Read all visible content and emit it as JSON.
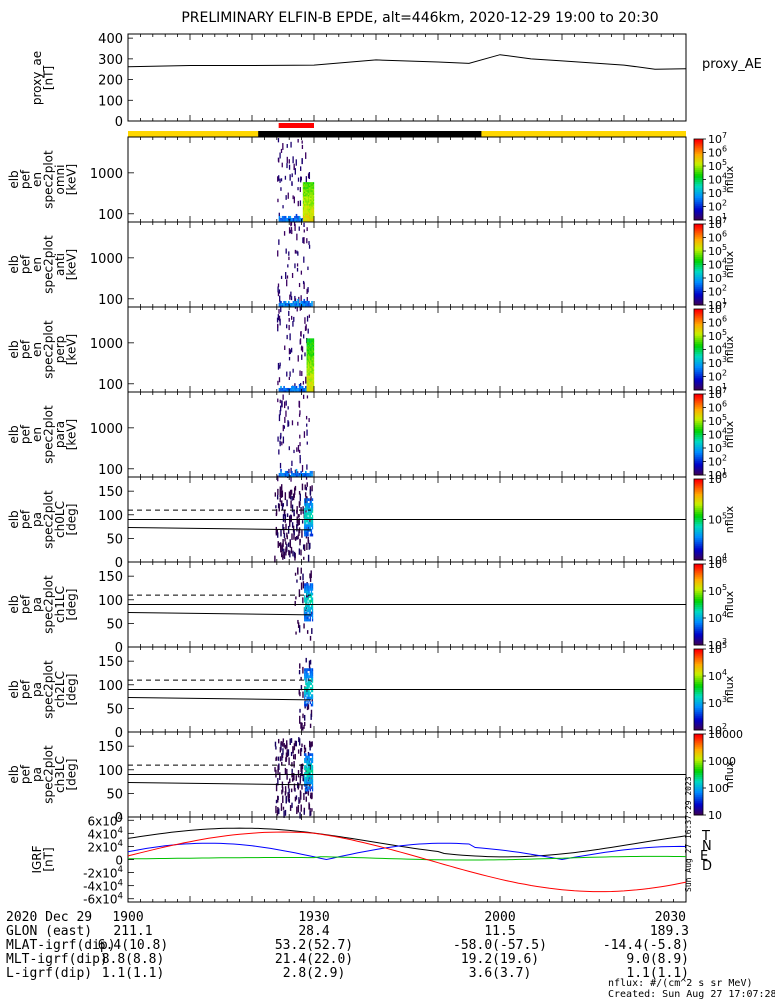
{
  "title": "PRELIMINARY ELFIN-B EPDE, alt=446km, 2020-12-29 19:00 to 20:30",
  "chart_data": [
    {
      "id": "proxy_ae",
      "type": "line",
      "ylabel_lines": [
        "proxy_ae",
        "[nT]"
      ],
      "right_label": "proxy_AE",
      "yticks": [
        "0",
        "100",
        "200",
        "300",
        "400"
      ],
      "ylim": [
        0,
        420
      ],
      "series": [
        {
          "x_min": [
            0,
            10,
            20,
            30,
            40,
            50,
            55,
            60,
            65,
            70,
            75,
            80,
            85,
            90
          ],
          "values": [
            262,
            268,
            268,
            270,
            295,
            285,
            278,
            320,
            300,
            290,
            280,
            270,
            250,
            252
          ]
        }
      ]
    },
    {
      "id": "en_omni",
      "type": "heatmap",
      "ylabel_lines": [
        "elb",
        "pef",
        "en",
        "spec2plot",
        "omni",
        "[keV]"
      ],
      "yticks": [
        "100",
        "1000"
      ],
      "cb_ticks": [
        "10^1",
        "10^2",
        "10^3",
        "10^4",
        "10^5",
        "10^6",
        "10^7"
      ],
      "cb_label": "nflux"
    },
    {
      "id": "en_anti",
      "type": "heatmap",
      "ylabel_lines": [
        "elb",
        "pef",
        "en",
        "spec2plot",
        "anti",
        "[keV]"
      ],
      "yticks": [
        "100",
        "1000"
      ],
      "cb_ticks": [
        "10^1",
        "10^2",
        "10^3",
        "10^4",
        "10^5",
        "10^6",
        "10^7"
      ],
      "cb_label": "nflux"
    },
    {
      "id": "en_perp",
      "type": "heatmap",
      "ylabel_lines": [
        "elb",
        "pef",
        "en",
        "spec2plot",
        "perp",
        "[keV]"
      ],
      "yticks": [
        "100",
        "1000"
      ],
      "cb_ticks": [
        "10^1",
        "10^2",
        "10^3",
        "10^4",
        "10^5",
        "10^6",
        "10^7"
      ],
      "cb_label": "nflux"
    },
    {
      "id": "en_para",
      "type": "heatmap",
      "ylabel_lines": [
        "elb",
        "pef",
        "en",
        "spec2plot",
        "para",
        "[keV]"
      ],
      "yticks": [
        "100",
        "1000"
      ],
      "cb_ticks": [
        "10^1",
        "10^2",
        "10^3",
        "10^4",
        "10^5",
        "10^6",
        "10^7"
      ],
      "cb_label": "nflux"
    },
    {
      "id": "pa_ch0",
      "type": "heatmap",
      "ylabel_lines": [
        "elb",
        "pef",
        "pa",
        "spec2plot",
        "ch0LC",
        "[deg]"
      ],
      "yticks": [
        "0",
        "50",
        "100",
        "150"
      ],
      "cb_ticks": [
        "10^4",
        "10^5",
        "10^6"
      ],
      "cb_label": "nflux"
    },
    {
      "id": "pa_ch1",
      "type": "heatmap",
      "ylabel_lines": [
        "elb",
        "pef",
        "pa",
        "spec2plot",
        "ch1LC",
        "[deg]"
      ],
      "yticks": [
        "0",
        "50",
        "100",
        "150"
      ],
      "cb_ticks": [
        "10^3",
        "10^4",
        "10^5",
        "10^6"
      ],
      "cb_label": "nflux"
    },
    {
      "id": "pa_ch2",
      "type": "heatmap",
      "ylabel_lines": [
        "elb",
        "pef",
        "pa",
        "spec2plot",
        "ch2LC",
        "[deg]"
      ],
      "yticks": [
        "0",
        "50",
        "100",
        "150"
      ],
      "cb_ticks": [
        "10^2",
        "10^3",
        "10^4",
        "10^5"
      ],
      "cb_label": "nflux"
    },
    {
      "id": "pa_ch3",
      "type": "heatmap",
      "ylabel_lines": [
        "elb",
        "pef",
        "pa",
        "spec2plot",
        "ch3LC",
        "[deg]"
      ],
      "yticks": [
        "0",
        "50",
        "100",
        "150"
      ],
      "cb_ticks": [
        "10",
        "100",
        "1000",
        "10000"
      ],
      "cb_label": "nflux"
    },
    {
      "id": "igrf",
      "type": "line",
      "ylabel_lines": [
        "IGRF",
        "[nT]"
      ],
      "yticks": [
        "-6x10^4",
        "-4x10^4",
        "-2x10^4",
        "0",
        "2x10^4",
        "4x10^4",
        "6x10^4"
      ],
      "legend": [
        {
          "label": "T",
          "color": "#000000"
        },
        {
          "label": "N",
          "color": "#0000ff"
        },
        {
          "label": "E",
          "color": "#00c000"
        },
        {
          "label": "D",
          "color": "#ff0000"
        }
      ]
    }
  ],
  "ephemeris": {
    "date_label": "2020 Dec 29",
    "times": [
      "1900",
      "1930",
      "2000",
      "2030"
    ],
    "rows": [
      {
        "label": "GLON (east)",
        "values": [
          "211.1",
          "28.4",
          "11.5",
          "189.3"
        ]
      },
      {
        "label": "MLAT-igrf(dip)",
        "values": [
          "6.4(10.8)",
          "53.2(52.7)",
          "-58.0(-57.5)",
          "-14.4(-5.8)"
        ]
      },
      {
        "label": "MLT-igrf(dip)",
        "values": [
          "8.8(8.8)",
          "21.4(22.0)",
          "19.2(19.6)",
          "9.0(8.9)"
        ]
      },
      {
        "label": "L-igrf(dip)",
        "values": [
          "1.1(1.1)",
          "2.8(2.9)",
          "3.6(3.7)",
          "1.1(1.1)"
        ]
      }
    ]
  },
  "footer": {
    "units": "nflux: #/(cm^2 s sr MeV)",
    "created": "Created: Sun Aug 27 17:07:28 2023",
    "stamp": "Sun Aug 27 16:37:29 2023"
  },
  "colors": {
    "day_bar": "#ffd700",
    "night_bar": "#000000",
    "science_zone": "#ff0000"
  }
}
